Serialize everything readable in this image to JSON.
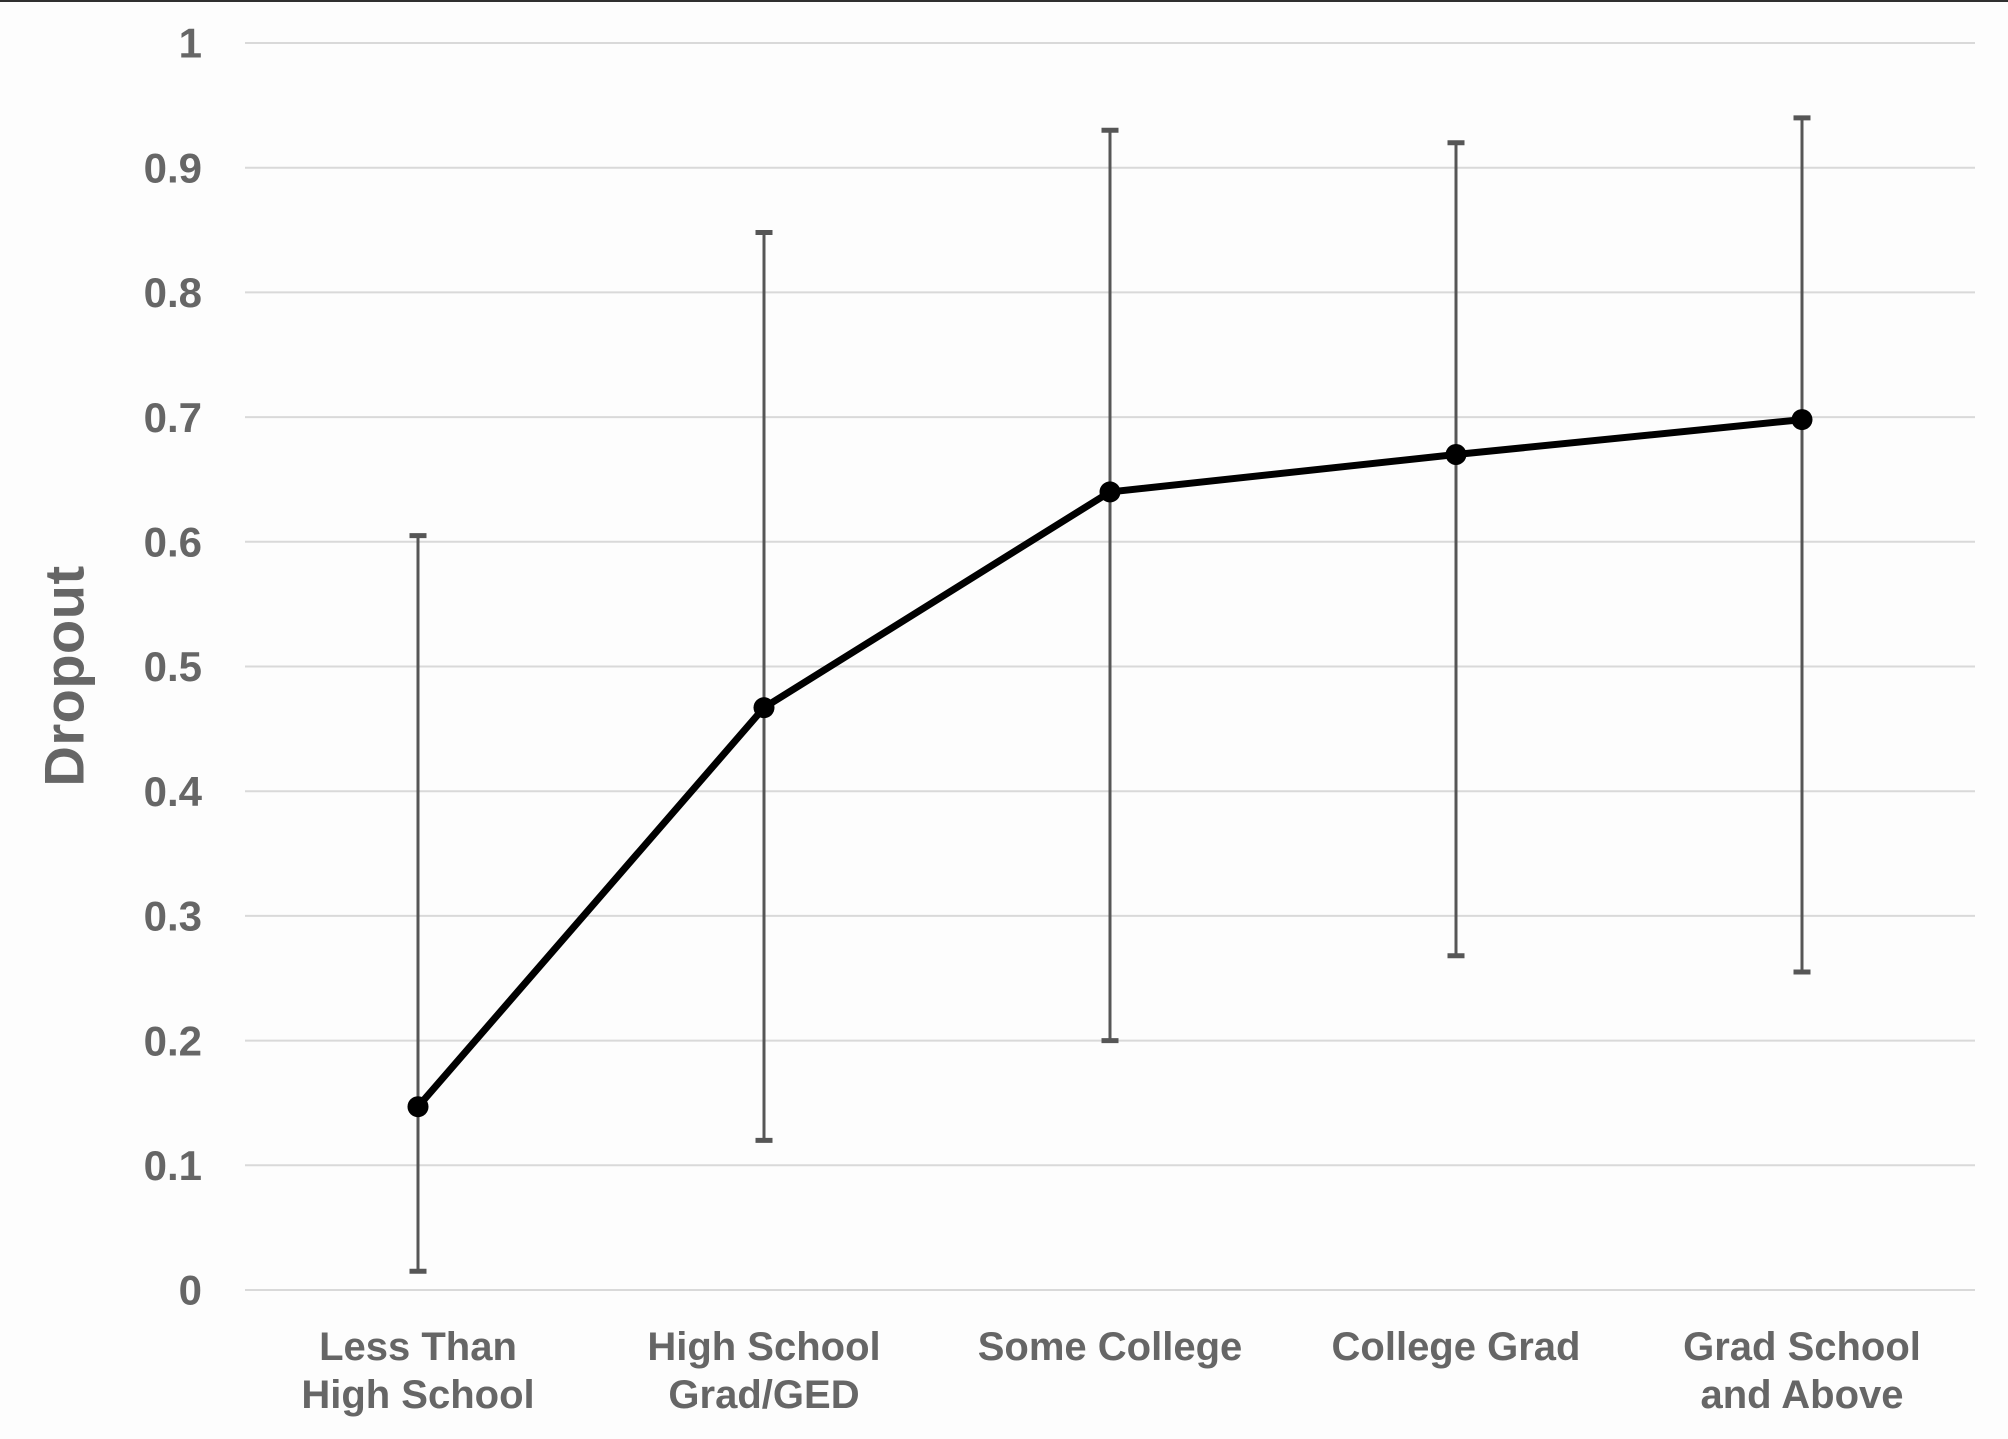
{
  "chart_data": {
    "type": "line",
    "title": "",
    "xlabel": "",
    "ylabel": "Dropout",
    "ylim": [
      0,
      1
    ],
    "grid": true,
    "legend": "none",
    "categories": [
      "Less Than High School",
      "High School Grad/GED",
      "Some College",
      "College Grad",
      "Grad School and Above"
    ],
    "category_label_lines": [
      [
        "Less Than",
        "High School"
      ],
      [
        "High School",
        "Grad/GED"
      ],
      [
        "Some College"
      ],
      [
        "College Grad"
      ],
      [
        "Grad School",
        "and Above"
      ]
    ],
    "series": [
      {
        "name": "Dropout",
        "values": [
          0.147,
          0.467,
          0.64,
          0.67,
          0.698
        ],
        "error_low": [
          0.015,
          0.12,
          0.2,
          0.268,
          0.255
        ],
        "error_high": [
          0.605,
          0.848,
          0.93,
          0.92,
          0.94
        ]
      }
    ],
    "yticks": {
      "values": [
        0,
        0.1,
        0.2,
        0.3,
        0.4,
        0.5,
        0.6,
        0.7,
        0.8,
        0.9,
        1
      ],
      "labels": [
        "0",
        "0.1",
        "0.2",
        "0.3",
        "0.4",
        "0.5",
        "0.6",
        "0.7",
        "0.8",
        "0.9",
        "1"
      ]
    },
    "colors": {
      "line": "#000000",
      "marker": "#000000",
      "error_bar": "#565656",
      "gridline": "#d9d9d9",
      "text": "#666666",
      "background": "#fdfdfd"
    }
  }
}
